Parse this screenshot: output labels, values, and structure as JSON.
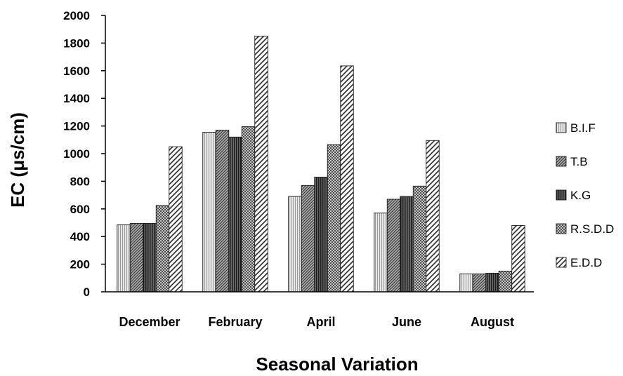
{
  "chart_data": {
    "type": "bar",
    "title": "",
    "xlabel": "Seasonal Variation",
    "ylabel": "EC (μs/cm)",
    "categories": [
      "December",
      "February",
      "April",
      "June",
      "August"
    ],
    "ylim": [
      0,
      2000
    ],
    "yticks": [
      0,
      200,
      400,
      600,
      800,
      1000,
      1200,
      1400,
      1600,
      1800,
      2000
    ],
    "grid": false,
    "legend": "right",
    "series": [
      {
        "name": "B.I.F",
        "values": [
          485,
          1155,
          690,
          570,
          130
        ],
        "pattern": "light-vertical",
        "color": "#d9d9d9"
      },
      {
        "name": "T.B",
        "values": [
          495,
          1170,
          770,
          670,
          130
        ],
        "pattern": "diagonal-dark",
        "color": "#8c8c8c"
      },
      {
        "name": "K.G",
        "values": [
          495,
          1120,
          830,
          690,
          135
        ],
        "pattern": "dark-vertical",
        "color": "#404040"
      },
      {
        "name": "R.S.D.D",
        "values": [
          625,
          1195,
          1065,
          765,
          150
        ],
        "pattern": "checker",
        "color": "#8f8f8f"
      },
      {
        "name": "E.D.D",
        "values": [
          1050,
          1850,
          1635,
          1095,
          480
        ],
        "pattern": "wide-diagonal",
        "color": "#ffffff"
      }
    ]
  }
}
